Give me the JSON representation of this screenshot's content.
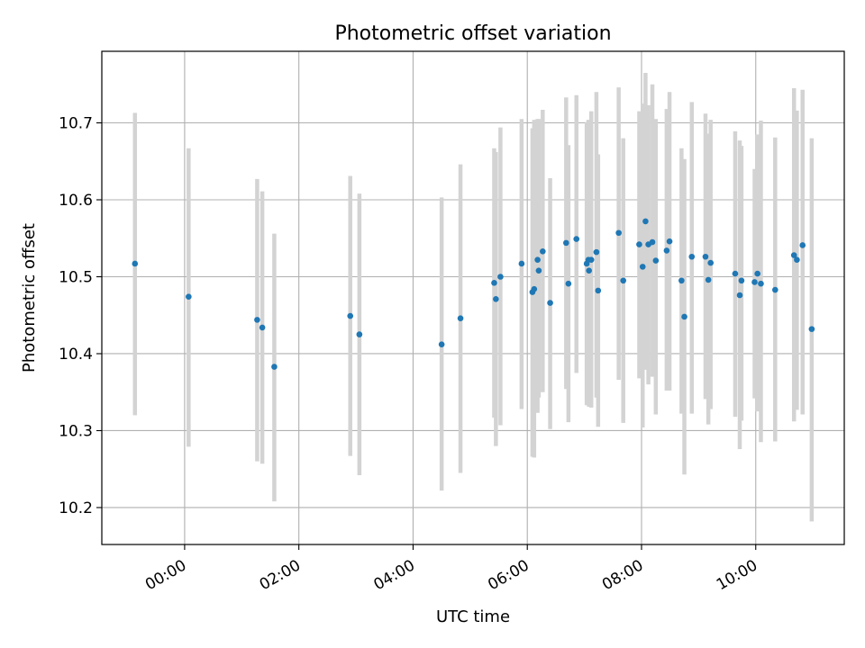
{
  "chart_data": {
    "type": "scatter",
    "title": "Photometric offset variation",
    "xlabel": "UTC time",
    "ylabel": "Photometric offset",
    "x_unit": "hours (UTC)",
    "xlim": [
      -1.45,
      11.55
    ],
    "ylim": [
      10.152,
      10.793
    ],
    "xticks": [
      0,
      2,
      4,
      6,
      8,
      10
    ],
    "xtick_labels": [
      "00:00",
      "02:00",
      "04:00",
      "06:00",
      "08:00",
      "10:00"
    ],
    "yticks": [
      10.2,
      10.3,
      10.4,
      10.5,
      10.6,
      10.7
    ],
    "ytick_labels": [
      "10.2",
      "10.3",
      "10.4",
      "10.5",
      "10.6",
      "10.7"
    ],
    "grid": true,
    "legend": false,
    "colors": {
      "points": "#1f77b4",
      "errorbars": "#d3d3d3",
      "grid": "#b0b0b0"
    },
    "x": [
      -0.87,
      0.07,
      1.27,
      1.36,
      1.57,
      2.9,
      3.06,
      4.5,
      4.83,
      5.42,
      5.45,
      5.53,
      5.9,
      6.09,
      6.12,
      6.18,
      6.2,
      6.27,
      6.4,
      6.68,
      6.72,
      6.86,
      7.04,
      7.07,
      7.08,
      7.12,
      7.21,
      7.24,
      7.6,
      7.68,
      7.96,
      8.02,
      8.07,
      8.12,
      8.19,
      8.25,
      8.44,
      8.49,
      8.7,
      8.75,
      8.88,
      9.12,
      9.17,
      9.21,
      9.64,
      9.72,
      9.75,
      9.98,
      10.03,
      10.09,
      10.34,
      10.67,
      10.72,
      10.82,
      10.98
    ],
    "y": [
      10.517,
      10.474,
      10.444,
      10.434,
      10.383,
      10.449,
      10.425,
      10.412,
      10.446,
      10.492,
      10.471,
      10.5,
      10.517,
      10.48,
      10.484,
      10.522,
      10.508,
      10.533,
      10.466,
      10.544,
      10.491,
      10.549,
      10.517,
      10.522,
      10.508,
      10.522,
      10.532,
      10.482,
      10.557,
      10.495,
      10.542,
      10.513,
      10.572,
      10.542,
      10.545,
      10.521,
      10.534,
      10.546,
      10.495,
      10.448,
      10.526,
      10.526,
      10.496,
      10.518,
      10.504,
      10.476,
      10.495,
      10.493,
      10.504,
      10.491,
      10.483,
      10.528,
      10.522,
      10.541,
      10.432
    ],
    "yerr_lower": [
      10.32,
      10.279,
      10.26,
      10.257,
      10.208,
      10.267,
      10.242,
      10.222,
      10.245,
      10.317,
      10.28,
      10.307,
      10.328,
      10.266,
      10.265,
      10.323,
      10.343,
      10.35,
      10.302,
      10.354,
      10.311,
      10.375,
      10.333,
      10.35,
      10.331,
      10.33,
      10.343,
      10.305,
      10.366,
      10.31,
      10.368,
      10.304,
      10.379,
      10.36,
      10.37,
      10.321,
      10.352,
      10.352,
      10.322,
      10.243,
      10.322,
      10.341,
      10.308,
      10.328,
      10.318,
      10.276,
      10.313,
      10.342,
      10.325,
      10.285,
      10.286,
      10.312,
      10.327,
      10.321,
      10.182
    ],
    "yerr_upper": [
      10.713,
      10.667,
      10.627,
      10.611,
      10.556,
      10.631,
      10.608,
      10.603,
      10.646,
      10.667,
      10.662,
      10.694,
      10.705,
      10.693,
      10.704,
      10.705,
      10.705,
      10.717,
      10.628,
      10.733,
      10.671,
      10.736,
      10.701,
      10.704,
      10.681,
      10.715,
      10.74,
      10.659,
      10.746,
      10.68,
      10.715,
      10.725,
      10.765,
      10.723,
      10.75,
      10.705,
      10.718,
      10.74,
      10.667,
      10.653,
      10.727,
      10.712,
      10.686,
      10.704,
      10.689,
      10.677,
      10.67,
      10.64,
      10.685,
      10.703,
      10.681,
      10.745,
      10.716,
      10.743,
      10.68
    ]
  }
}
